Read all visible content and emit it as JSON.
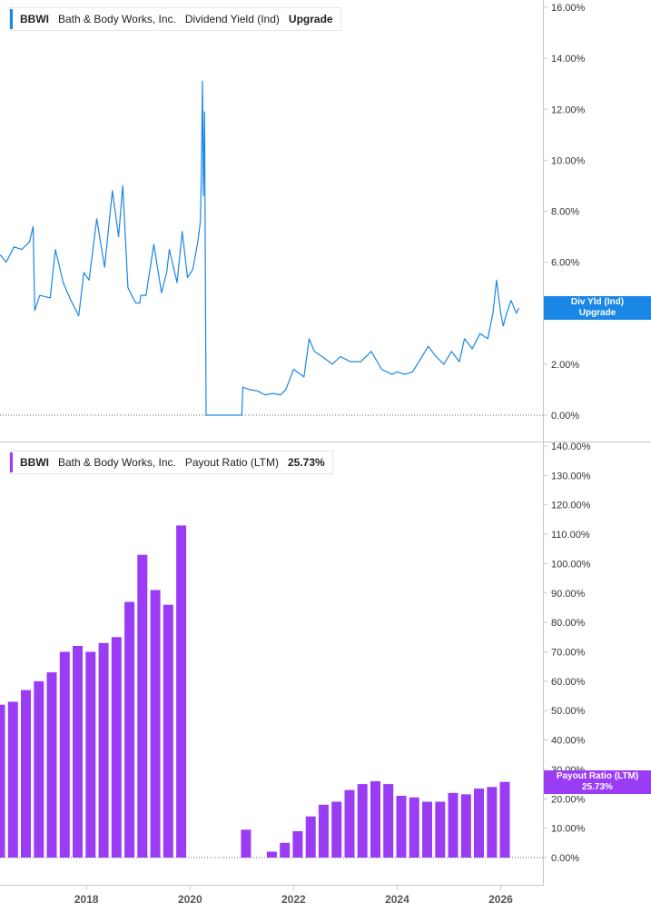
{
  "colors": {
    "yield": "#1a86e6",
    "payout": "#9b3cf5",
    "axis": "#c8c8c8",
    "text": "#333333"
  },
  "chart_data": [
    {
      "type": "line",
      "legend": {
        "ticker": "BBWI",
        "company": "Bath & Body Works, Inc.",
        "metric": "Dividend Yield (Ind)",
        "value": "Upgrade"
      },
      "tag": {
        "line1": "Div Yld (Ind)",
        "line2": "Upgrade"
      },
      "ylim": [
        0,
        16
      ],
      "yticks": [
        {
          "v": 0,
          "label": "0.00%"
        },
        {
          "v": 2,
          "label": "2.00%"
        },
        {
          "v": 4,
          "label": "4.00%"
        },
        {
          "v": 6,
          "label": "6.00%"
        },
        {
          "v": 8,
          "label": "8.00%"
        },
        {
          "v": 10,
          "label": "10.00%"
        },
        {
          "v": 12,
          "label": "12.00%"
        },
        {
          "v": 14,
          "label": "14.00%"
        },
        {
          "v": 16,
          "label": "16.00%"
        }
      ],
      "series": [
        {
          "x": [
            2016.33,
            2016.45,
            2016.6,
            2016.75,
            2016.9,
            2016.97,
            2017.0,
            2017.1,
            2017.3,
            2017.4,
            2017.55,
            2017.7,
            2017.85,
            2017.95,
            2018.05,
            2018.2,
            2018.35,
            2018.5,
            2018.62,
            2018.7,
            2018.8,
            2018.95,
            2019.03,
            2019.05,
            2019.15,
            2019.3,
            2019.45,
            2019.55,
            2019.6,
            2019.75,
            2019.85,
            2019.95,
            2020.05,
            2020.15,
            2020.2,
            2020.22,
            2020.24,
            2020.26,
            2020.28,
            2020.31,
            2020.36,
            2021.0,
            2021.02,
            2021.15,
            2021.3,
            2021.45,
            2021.6,
            2021.75,
            2021.85,
            2022.0,
            2022.2,
            2022.3,
            2022.4,
            2022.55,
            2022.75,
            2022.9,
            2023.1,
            2023.3,
            2023.5,
            2023.7,
            2023.9,
            2024.0,
            2024.15,
            2024.3,
            2024.45,
            2024.6,
            2024.75,
            2024.9,
            2025.05,
            2025.2,
            2025.3,
            2025.45,
            2025.6,
            2025.75,
            2025.85,
            2025.92,
            2026.0,
            2026.05,
            2026.1,
            2026.2,
            2026.3,
            2026.35
          ],
          "y": [
            6.3,
            6.0,
            6.6,
            6.5,
            6.8,
            7.4,
            4.1,
            4.7,
            4.6,
            6.5,
            5.2,
            4.5,
            3.9,
            5.6,
            5.3,
            7.7,
            5.8,
            8.8,
            7.0,
            9.0,
            5.0,
            4.4,
            4.4,
            4.7,
            4.7,
            6.7,
            4.8,
            5.6,
            6.5,
            5.2,
            7.2,
            5.4,
            5.7,
            6.8,
            7.6,
            9.5,
            13.1,
            8.6,
            11.9,
            0.0,
            0.0,
            0.0,
            1.1,
            1.0,
            0.95,
            0.8,
            0.85,
            0.8,
            1.0,
            1.8,
            1.5,
            3.0,
            2.5,
            2.3,
            2.0,
            2.3,
            2.1,
            2.1,
            2.5,
            1.8,
            1.6,
            1.7,
            1.6,
            1.7,
            2.2,
            2.7,
            2.3,
            2.0,
            2.5,
            2.1,
            3.0,
            2.6,
            3.2,
            3.0,
            4.0,
            5.3,
            4.0,
            3.5,
            3.9,
            4.5,
            4.0,
            4.2
          ]
        }
      ]
    },
    {
      "type": "bar",
      "legend": {
        "ticker": "BBWI",
        "company": "Bath & Body Works, Inc.",
        "metric": "Payout Ratio (LTM)",
        "value": "25.73%"
      },
      "tag": {
        "line1": "Payout Ratio (LTM)",
        "line2": "25.73%"
      },
      "ylim": [
        0,
        140
      ],
      "yticks": [
        {
          "v": 0,
          "label": "0.00%"
        },
        {
          "v": 10,
          "label": "10.00%"
        },
        {
          "v": 20,
          "label": "20.00%"
        },
        {
          "v": 30,
          "label": "30.00%"
        },
        {
          "v": 40,
          "label": "40.00%"
        },
        {
          "v": 50,
          "label": "50.00%"
        },
        {
          "v": 60,
          "label": "60.00%"
        },
        {
          "v": 70,
          "label": "70.00%"
        },
        {
          "v": 80,
          "label": "80.00%"
        },
        {
          "v": 90,
          "label": "90.00%"
        },
        {
          "v": 100,
          "label": "100.00%"
        },
        {
          "v": 110,
          "label": "110.00%"
        },
        {
          "v": 120,
          "label": "120.00%"
        },
        {
          "v": 130,
          "label": "130.00%"
        },
        {
          "v": 140,
          "label": "140.00%"
        }
      ],
      "x": [
        2016.33,
        2016.58,
        2016.83,
        2017.08,
        2017.33,
        2017.58,
        2017.83,
        2018.08,
        2018.33,
        2018.58,
        2018.83,
        2019.08,
        2019.33,
        2019.58,
        2019.83,
        2020.08,
        2020.33,
        2020.58,
        2020.83,
        2021.08,
        2021.33,
        2021.58,
        2021.83,
        2022.08,
        2022.33,
        2022.58,
        2022.83,
        2023.08,
        2023.33,
        2023.58,
        2023.83,
        2024.08,
        2024.33,
        2024.58,
        2024.83,
        2025.08,
        2025.33,
        2025.58,
        2025.83,
        2026.08
      ],
      "values": [
        52,
        53,
        57,
        60,
        63,
        70,
        72,
        70,
        73,
        75,
        87,
        103,
        91,
        86,
        113,
        null,
        null,
        null,
        null,
        9.5,
        null,
        2,
        5,
        9,
        14,
        18,
        19,
        23,
        25,
        26,
        25,
        21,
        20.5,
        19,
        19,
        22,
        21.5,
        23.5,
        24,
        25.73
      ]
    }
  ],
  "xaxis": {
    "xlim": [
      2016.33,
      2026.5
    ],
    "ticks": [
      {
        "v": 2018,
        "label": "2018"
      },
      {
        "v": 2020,
        "label": "2020"
      },
      {
        "v": 2022,
        "label": "2022"
      },
      {
        "v": 2024,
        "label": "2024"
      },
      {
        "v": 2026,
        "label": "2026"
      }
    ]
  }
}
